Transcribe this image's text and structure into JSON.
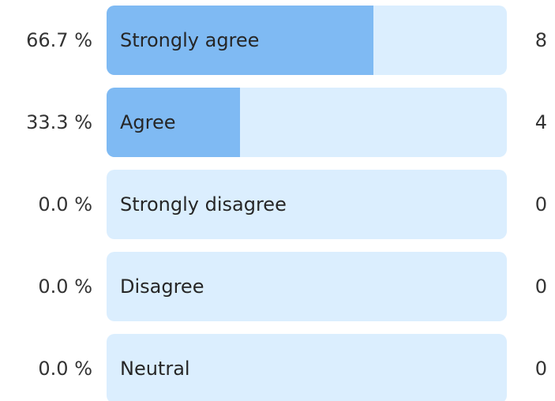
{
  "colors": {
    "track": "#dbeefe",
    "fill": "#7fbaf3"
  },
  "options": [
    {
      "percent_label": "66.7 %",
      "label": "Strongly agree",
      "count": "8",
      "fraction": 0.667
    },
    {
      "percent_label": "33.3 %",
      "label": "Agree",
      "count": "4",
      "fraction": 0.333
    },
    {
      "percent_label": "0.0 %",
      "label": "Strongly disagree",
      "count": "0",
      "fraction": 0.0
    },
    {
      "percent_label": "0.0 %",
      "label": "Disagree",
      "count": "0",
      "fraction": 0.0
    },
    {
      "percent_label": "0.0 %",
      "label": "Neutral",
      "count": "0",
      "fraction": 0.0
    }
  ]
}
